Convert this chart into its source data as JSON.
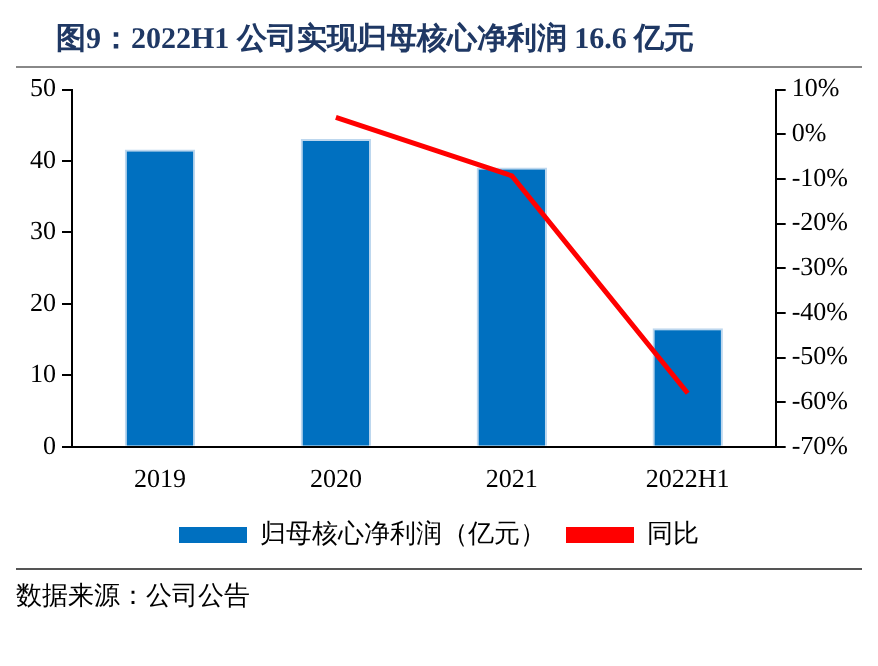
{
  "chart_data": {
    "type": "bar",
    "title": "图9：2022H1 公司实现归母核心净利润 16.6 亿元",
    "categories": [
      "2019",
      "2020",
      "2021",
      "2022H1"
    ],
    "series": [
      {
        "name": "归母核心净利润（亿元）",
        "color": "#0070c0",
        "values": [
          41.6,
          43.1,
          39.1,
          16.6
        ]
      },
      {
        "name": "同比",
        "type": "line",
        "axis": "y2",
        "color": "#ff0000",
        "values": [
          null,
          3.8,
          -9.3,
          -58
        ]
      }
    ],
    "ylim": [
      0,
      50
    ],
    "yticks": [
      0,
      10,
      20,
      30,
      40,
      50
    ],
    "y2lim": [
      -70,
      10
    ],
    "y2ticks": [
      {
        "value": -70,
        "label": "-70%"
      },
      {
        "value": -60,
        "label": "-60%"
      },
      {
        "value": -50,
        "label": "-50%"
      },
      {
        "value": -40,
        "label": "-40%"
      },
      {
        "value": -30,
        "label": "-30%"
      },
      {
        "value": -20,
        "label": "-20%"
      },
      {
        "value": -10,
        "label": "-10%"
      },
      {
        "value": 0,
        "label": "0%"
      },
      {
        "value": 10,
        "label": "10%"
      }
    ],
    "legend": "bottom",
    "grid": false,
    "marker": "none",
    "annotations": [
      "数据来源：公司公告"
    ]
  }
}
